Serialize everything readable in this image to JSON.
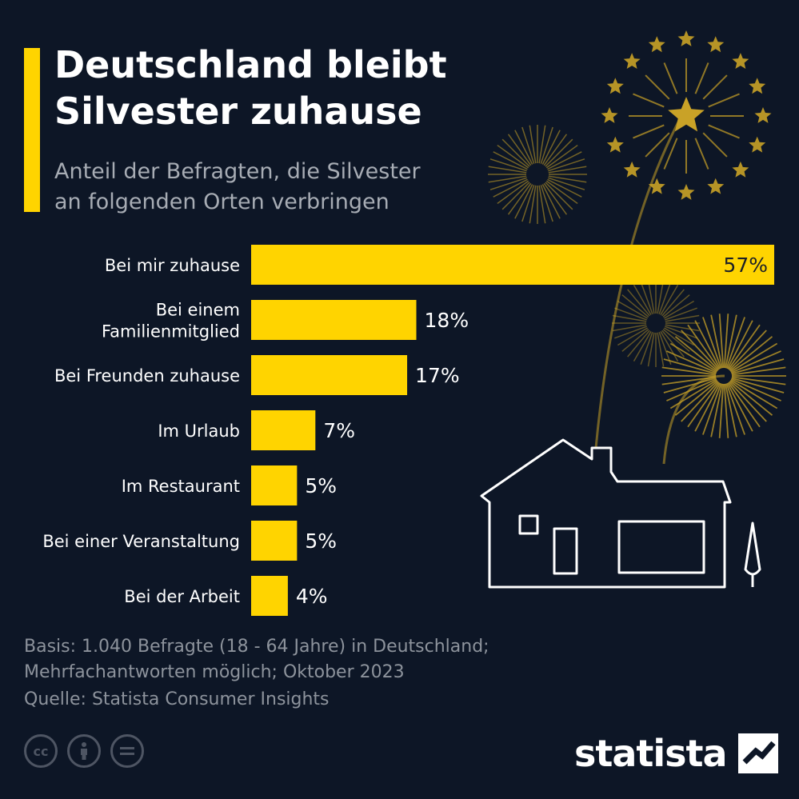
{
  "header": {
    "title_line1": "Deutschland bleibt",
    "title_line2": "Silvester zuhause",
    "subtitle_line1": "Anteil der Befragten, die Silvester",
    "subtitle_line2": "an folgenden Orten verbringen"
  },
  "chart_data": {
    "type": "bar",
    "orientation": "horizontal",
    "categories": [
      [
        "Bei mir zuhause"
      ],
      [
        "Bei einem",
        "Familienmitglied"
      ],
      [
        "Bei Freunden zuhause"
      ],
      [
        "Im Urlaub"
      ],
      [
        "Im Restaurant"
      ],
      [
        "Bei einer Veranstaltung"
      ],
      [
        "Bei der Arbeit"
      ]
    ],
    "values": [
      57,
      18,
      17,
      7,
      5,
      5,
      4
    ],
    "value_labels": [
      "57%",
      "18%",
      "17%",
      "7%",
      "5%",
      "5%",
      "4%"
    ],
    "unit": "%",
    "bar_color": "#ffd400",
    "grid": false,
    "legend": "none"
  },
  "footer": {
    "basis_line1": "Basis: 1.040 Befragte (18 - 64 Jahre) in Deutschland;",
    "basis_line2": "Mehrfachantworten möglich; Oktober 2023",
    "source": "Quelle: Statista Consumer Insights"
  },
  "license_icons": [
    "cc-icon",
    "person-icon",
    "equals-icon"
  ],
  "brand": {
    "name": "statista"
  },
  "colors": {
    "background": "#0d1626",
    "accent": "#ffd400",
    "text": "#ffffff",
    "muted": "#a7acb4",
    "firework": "#c9a227"
  }
}
